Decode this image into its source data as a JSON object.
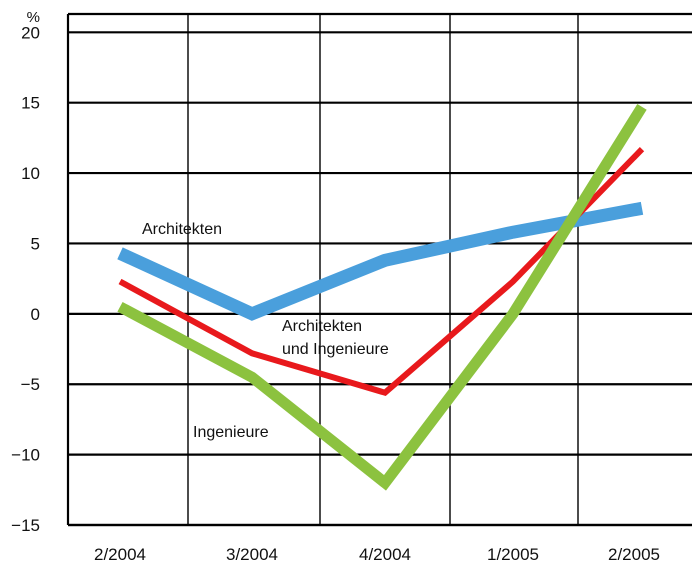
{
  "chart_data": {
    "type": "line",
    "unit_label": "%",
    "categories": [
      "2/2004",
      "3/2004",
      "4/2004",
      "1/2005",
      "2/2005"
    ],
    "ylim": [
      -15,
      20
    ],
    "yticks": [
      20,
      15,
      10,
      5,
      0,
      -5,
      -10,
      -15
    ],
    "ytick_labels": [
      "20",
      "15",
      "10",
      "5",
      "0",
      "−5",
      "−10",
      "−15"
    ],
    "grid": true,
    "series": [
      {
        "name": "Architekten",
        "color": "#4a9fdc",
        "values": [
          4.3,
          0.0,
          3.8,
          5.8,
          7.5
        ]
      },
      {
        "name": "Architekten und Ingenieure",
        "color": "#e8191c",
        "values": [
          2.3,
          -2.8,
          -5.6,
          2.3,
          11.7
        ]
      },
      {
        "name": "Ingenieure",
        "color": "#8cc23f",
        "values": [
          0.5,
          -4.5,
          -12.0,
          0.0,
          14.7
        ]
      }
    ],
    "annotations": {
      "architekten": "Architekten",
      "beide_line1": "Architekten",
      "beide_line2": "und Ingenieure",
      "ingenieure": "Ingenieure"
    }
  }
}
